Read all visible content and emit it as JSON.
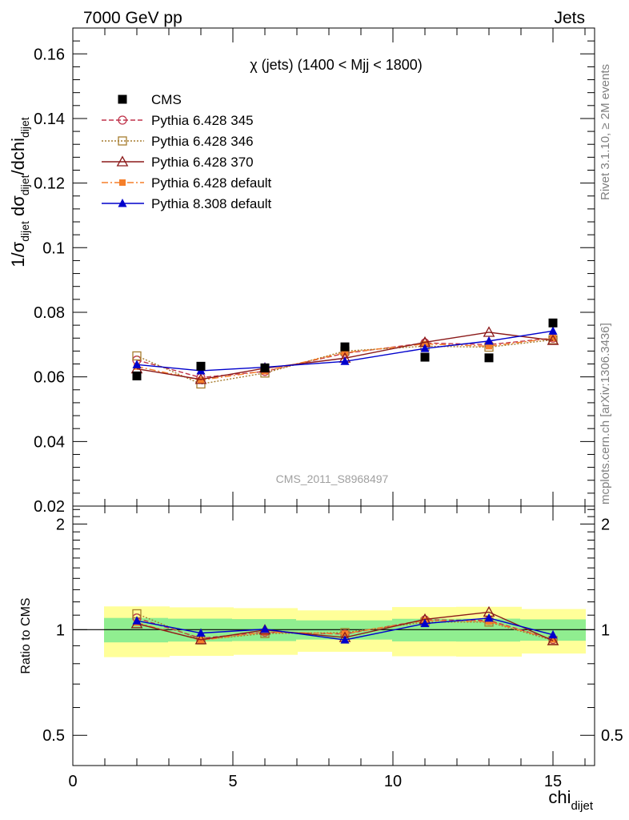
{
  "header": {
    "left": "7000 GeV pp",
    "right": "Jets"
  },
  "side_labels": {
    "rivet": "Rivet 3.1.10, ≥ 2M events",
    "mcplots": "mcplots.cern.ch [arXiv:1306.3436]"
  },
  "watermark": "CMS_2011_S8968497",
  "chart_data": {
    "type": "line",
    "title": "χ (jets) (1400 < Mjj < 1800)",
    "xlabel": "chi_dijet",
    "ylabel": "1/σ_dijet dσ_dijet/dchi_dijet",
    "xlim": [
      0,
      16.3
    ],
    "ylim": [
      0.02,
      0.168
    ],
    "xticks": [
      "0",
      "5",
      "10",
      "15"
    ],
    "yticks": [
      "0.02",
      "0.04",
      "0.06",
      "0.08",
      "0.1",
      "0.12",
      "0.14",
      "0.16"
    ],
    "x": [
      2,
      4,
      6,
      8.5,
      11,
      13,
      15
    ],
    "bins": [
      [
        1,
        3
      ],
      [
        3,
        5
      ],
      [
        5,
        7
      ],
      [
        7,
        10
      ],
      [
        10,
        12
      ],
      [
        12,
        14
      ],
      [
        14,
        16
      ]
    ],
    "legend_position": "top-left",
    "series": [
      {
        "name": "CMS",
        "marker": "square",
        "color": "#000000",
        "line": "none",
        "values": [
          0.0603,
          0.0633,
          0.0628,
          0.0693,
          0.0661,
          0.0659,
          0.0767
        ],
        "ratio": [
          1,
          1,
          1,
          1,
          1,
          1,
          1
        ]
      },
      {
        "name": "Pythia 6.428 345",
        "marker": "circle-open",
        "color": "#c0344b",
        "line": "dashed",
        "values": [
          0.0652,
          0.0598,
          0.0617,
          0.0673,
          0.0705,
          0.07,
          0.072
        ],
        "ratio": [
          1.08,
          0.945,
          0.984,
          0.972,
          1.066,
          1.063,
          0.938
        ]
      },
      {
        "name": "Pythia 6.428 346",
        "marker": "square-open",
        "color": "#a67c2e",
        "line": "dotted",
        "values": [
          0.0665,
          0.0578,
          0.0612,
          0.068,
          0.0695,
          0.0692,
          0.0715
        ],
        "ratio": [
          1.11,
          0.935,
          0.975,
          0.981,
          1.051,
          1.051,
          0.932
        ]
      },
      {
        "name": "Pythia 6.428 370",
        "marker": "triangle-open",
        "color": "#8b1a1a",
        "line": "solid",
        "values": [
          0.0625,
          0.0592,
          0.0627,
          0.0658,
          0.0707,
          0.0738,
          0.0713
        ],
        "ratio": [
          1.04,
          0.936,
          0.998,
          0.95,
          1.07,
          1.122,
          0.93
        ]
      },
      {
        "name": "Pythia 6.428 default",
        "marker": "square",
        "color": "#f57f2a",
        "line": "dashdot",
        "values": [
          0.0632,
          0.059,
          0.0618,
          0.0675,
          0.0702,
          0.0695,
          0.072
        ],
        "ratio": [
          1.047,
          0.933,
          0.984,
          0.974,
          1.062,
          1.055,
          0.939
        ]
      },
      {
        "name": "Pythia 8.308 default",
        "marker": "triangle",
        "color": "#0000cc",
        "line": "solid",
        "values": [
          0.0638,
          0.0619,
          0.063,
          0.0648,
          0.0688,
          0.0711,
          0.0742
        ],
        "ratio": [
          1.06,
          0.978,
          1.003,
          0.935,
          1.041,
          1.079,
          0.967
        ]
      }
    ],
    "ratio_panel": {
      "ylabel": "Ratio to CMS",
      "ylim": [
        0.41,
        2.25
      ],
      "yticks": [
        "0.5",
        "1",
        "2"
      ],
      "band_inner": [
        0.08,
        0.075,
        0.072,
        0.063,
        0.074,
        0.075,
        0.07
      ],
      "band_outer": [
        0.165,
        0.158,
        0.152,
        0.135,
        0.16,
        0.162,
        0.145
      ],
      "band_colors": {
        "inner": "#90ee90",
        "outer": "#ffff99"
      }
    }
  }
}
